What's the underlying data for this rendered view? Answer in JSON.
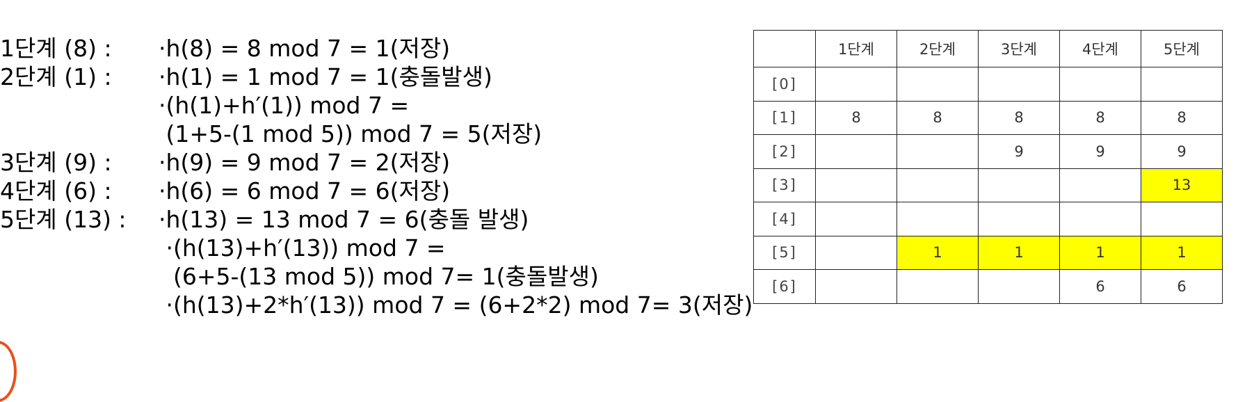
{
  "steps": [
    {
      "prefix": "1단계 (8) : ",
      "text": "·h(8) = 8 mod 7 = 1(저장)"
    },
    {
      "prefix": "2단계 (1) : ",
      "text": "·h(1) = 1 mod 7 = 1(충돌발생)"
    },
    {
      "prefix": "",
      "text": "·(h(1)+h′(1)) mod 7 ="
    },
    {
      "prefix": "",
      "text": " (1+5-(1 mod 5)) mod 7 = 5(저장)"
    },
    {
      "prefix": "3단계 (9) : ",
      "text": "·h(9) = 9 mod 7 = 2(저장)"
    },
    {
      "prefix": "4단계 (6) : ",
      "text": "·h(6) = 6 mod 7 = 6(저장)"
    },
    {
      "prefix": "5단계 (13) :",
      "text": "·h(13) = 13 mod 7 = 6(충돌 발생)"
    },
    {
      "prefix": "",
      "text": " ·(h(13)+h′(13)) mod 7 ="
    },
    {
      "prefix": "",
      "text": "  (6+5-(13 mod 5)) mod 7= 1(충돌발생)"
    },
    {
      "prefix": "",
      "text": " ·(h(13)+2*h′(13)) mod 7 = (6+2*2) mod 7= 3(저장)"
    }
  ],
  "table": {
    "headers": [
      "1단계",
      "2단계",
      "3단계",
      "4단계",
      "5단계"
    ],
    "rows": [
      {
        "index": "[0]",
        "cells": [
          "",
          "",
          "",
          "",
          ""
        ]
      },
      {
        "index": "[1]",
        "cells": [
          "8",
          "8",
          "8",
          "8",
          "8"
        ]
      },
      {
        "index": "[2]",
        "cells": [
          "",
          "",
          "9",
          "9",
          "9"
        ]
      },
      {
        "index": "[3]",
        "cells": [
          "",
          "",
          "",
          "",
          "13"
        ]
      },
      {
        "index": "[4]",
        "cells": [
          "",
          "",
          "",
          "",
          ""
        ]
      },
      {
        "index": "[5]",
        "cells": [
          "",
          "1",
          "1",
          "1",
          "1"
        ]
      },
      {
        "index": "[6]",
        "cells": [
          "",
          "",
          "",
          "6",
          "6"
        ]
      }
    ],
    "highlight_color": "#ffff00",
    "highlighted_cells": [
      {
        "row": "[3]",
        "step": "5단계"
      },
      {
        "row": "[5]",
        "step": "2단계"
      },
      {
        "row": "[5]",
        "step": "3단계"
      },
      {
        "row": "[5]",
        "step": "4단계"
      },
      {
        "row": "[5]",
        "step": "5단계"
      }
    ]
  }
}
